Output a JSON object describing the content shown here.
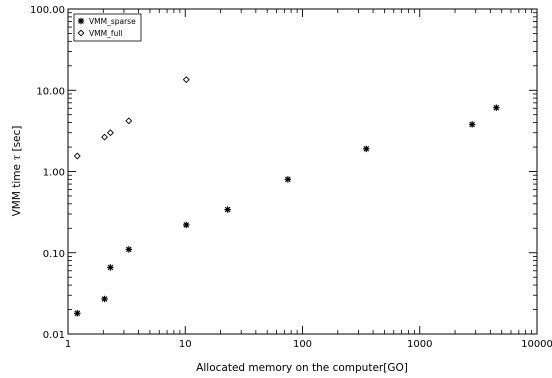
{
  "chart_data": {
    "type": "scatter",
    "title": "",
    "xlabel": "Allocated memory on the computer[GO]",
    "ylabel_prefix": "VMM time ",
    "ylabel_symbol": "τ",
    "ylabel_suffix": " [sec]",
    "x_scale": "log",
    "y_scale": "log",
    "xlim": [
      1,
      10000
    ],
    "ylim": [
      0.01,
      100
    ],
    "x_ticks": [
      1,
      10,
      100,
      1000,
      10000
    ],
    "x_tick_labels": [
      "1",
      "10",
      "100",
      "1000",
      "10000"
    ],
    "y_ticks": [
      0.01,
      0.1,
      1,
      10,
      100
    ],
    "y_tick_labels": [
      "0.01",
      "0.10",
      "1.00",
      "10.00",
      "100.00"
    ],
    "grid": false,
    "legend_position": "top-left",
    "series": [
      {
        "name": "VMM_sparse",
        "marker": "asterisk",
        "x": [
          1.2,
          2.05,
          2.3,
          3.3,
          10.2,
          23,
          75,
          350,
          2800,
          4500
        ],
        "y": [
          0.018,
          0.027,
          0.066,
          0.11,
          0.22,
          0.34,
          0.8,
          1.9,
          3.8,
          6.1
        ]
      },
      {
        "name": "VMM_full",
        "marker": "diamond",
        "x": [
          1.2,
          2.05,
          2.3,
          3.3,
          10.2
        ],
        "y": [
          1.55,
          2.65,
          3.0,
          4.2,
          13.5
        ]
      }
    ]
  }
}
